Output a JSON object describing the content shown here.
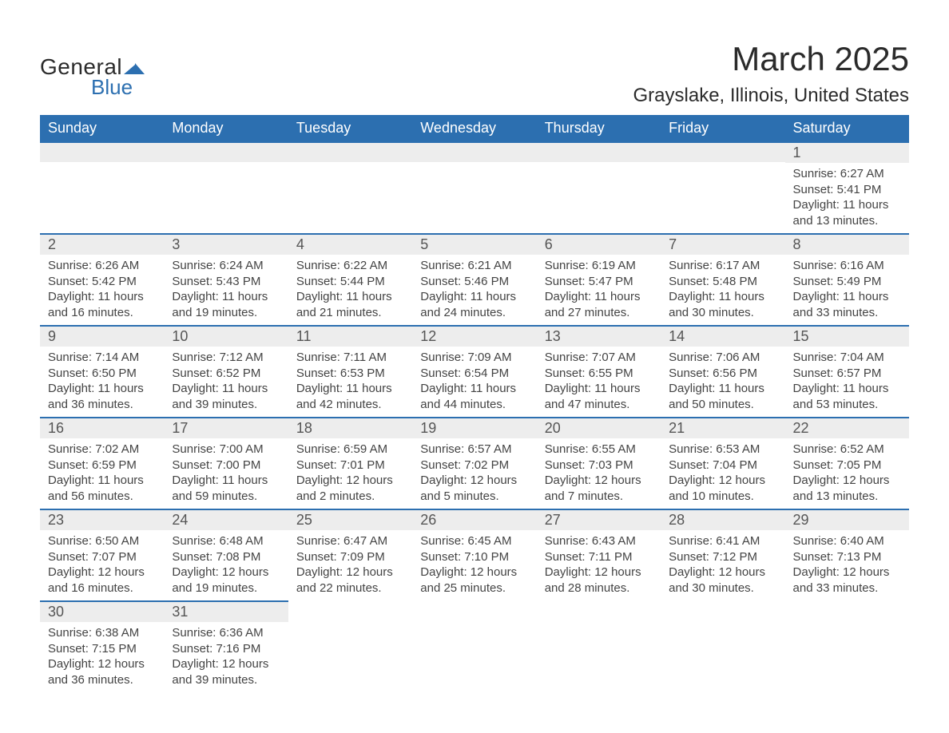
{
  "logo": {
    "text1": "General",
    "text2": "Blue"
  },
  "title": "March 2025",
  "location": "Grayslake, Illinois, United States",
  "colors": {
    "header_bg": "#2c6fb0",
    "header_text": "#ffffff",
    "daynum_bg": "#ededed",
    "daynum_text": "#555555",
    "body_text": "#444444",
    "rule": "#2c6fb0",
    "page_bg": "#ffffff",
    "title_text": "#2b2b2b",
    "logo_accent": "#2c6fb0"
  },
  "typography": {
    "title_fontsize": 42,
    "location_fontsize": 24,
    "header_fontsize": 18,
    "daynum_fontsize": 18,
    "body_fontsize": 15,
    "font_family": "Arial"
  },
  "layout": {
    "columns": 7,
    "rows": 6,
    "start_day_index": 6
  },
  "weekdays": [
    "Sunday",
    "Monday",
    "Tuesday",
    "Wednesday",
    "Thursday",
    "Friday",
    "Saturday"
  ],
  "labels": {
    "sunrise": "Sunrise:",
    "sunset": "Sunset:",
    "daylight": "Daylight:"
  },
  "days": [
    {
      "n": 1,
      "sunrise": "6:27 AM",
      "sunset": "5:41 PM",
      "daylight": "11 hours and 13 minutes."
    },
    {
      "n": 2,
      "sunrise": "6:26 AM",
      "sunset": "5:42 PM",
      "daylight": "11 hours and 16 minutes."
    },
    {
      "n": 3,
      "sunrise": "6:24 AM",
      "sunset": "5:43 PM",
      "daylight": "11 hours and 19 minutes."
    },
    {
      "n": 4,
      "sunrise": "6:22 AM",
      "sunset": "5:44 PM",
      "daylight": "11 hours and 21 minutes."
    },
    {
      "n": 5,
      "sunrise": "6:21 AM",
      "sunset": "5:46 PM",
      "daylight": "11 hours and 24 minutes."
    },
    {
      "n": 6,
      "sunrise": "6:19 AM",
      "sunset": "5:47 PM",
      "daylight": "11 hours and 27 minutes."
    },
    {
      "n": 7,
      "sunrise": "6:17 AM",
      "sunset": "5:48 PM",
      "daylight": "11 hours and 30 minutes."
    },
    {
      "n": 8,
      "sunrise": "6:16 AM",
      "sunset": "5:49 PM",
      "daylight": "11 hours and 33 minutes."
    },
    {
      "n": 9,
      "sunrise": "7:14 AM",
      "sunset": "6:50 PM",
      "daylight": "11 hours and 36 minutes."
    },
    {
      "n": 10,
      "sunrise": "7:12 AM",
      "sunset": "6:52 PM",
      "daylight": "11 hours and 39 minutes."
    },
    {
      "n": 11,
      "sunrise": "7:11 AM",
      "sunset": "6:53 PM",
      "daylight": "11 hours and 42 minutes."
    },
    {
      "n": 12,
      "sunrise": "7:09 AM",
      "sunset": "6:54 PM",
      "daylight": "11 hours and 44 minutes."
    },
    {
      "n": 13,
      "sunrise": "7:07 AM",
      "sunset": "6:55 PM",
      "daylight": "11 hours and 47 minutes."
    },
    {
      "n": 14,
      "sunrise": "7:06 AM",
      "sunset": "6:56 PM",
      "daylight": "11 hours and 50 minutes."
    },
    {
      "n": 15,
      "sunrise": "7:04 AM",
      "sunset": "6:57 PM",
      "daylight": "11 hours and 53 minutes."
    },
    {
      "n": 16,
      "sunrise": "7:02 AM",
      "sunset": "6:59 PM",
      "daylight": "11 hours and 56 minutes."
    },
    {
      "n": 17,
      "sunrise": "7:00 AM",
      "sunset": "7:00 PM",
      "daylight": "11 hours and 59 minutes."
    },
    {
      "n": 18,
      "sunrise": "6:59 AM",
      "sunset": "7:01 PM",
      "daylight": "12 hours and 2 minutes."
    },
    {
      "n": 19,
      "sunrise": "6:57 AM",
      "sunset": "7:02 PM",
      "daylight": "12 hours and 5 minutes."
    },
    {
      "n": 20,
      "sunrise": "6:55 AM",
      "sunset": "7:03 PM",
      "daylight": "12 hours and 7 minutes."
    },
    {
      "n": 21,
      "sunrise": "6:53 AM",
      "sunset": "7:04 PM",
      "daylight": "12 hours and 10 minutes."
    },
    {
      "n": 22,
      "sunrise": "6:52 AM",
      "sunset": "7:05 PM",
      "daylight": "12 hours and 13 minutes."
    },
    {
      "n": 23,
      "sunrise": "6:50 AM",
      "sunset": "7:07 PM",
      "daylight": "12 hours and 16 minutes."
    },
    {
      "n": 24,
      "sunrise": "6:48 AM",
      "sunset": "7:08 PM",
      "daylight": "12 hours and 19 minutes."
    },
    {
      "n": 25,
      "sunrise": "6:47 AM",
      "sunset": "7:09 PM",
      "daylight": "12 hours and 22 minutes."
    },
    {
      "n": 26,
      "sunrise": "6:45 AM",
      "sunset": "7:10 PM",
      "daylight": "12 hours and 25 minutes."
    },
    {
      "n": 27,
      "sunrise": "6:43 AM",
      "sunset": "7:11 PM",
      "daylight": "12 hours and 28 minutes."
    },
    {
      "n": 28,
      "sunrise": "6:41 AM",
      "sunset": "7:12 PM",
      "daylight": "12 hours and 30 minutes."
    },
    {
      "n": 29,
      "sunrise": "6:40 AM",
      "sunset": "7:13 PM",
      "daylight": "12 hours and 33 minutes."
    },
    {
      "n": 30,
      "sunrise": "6:38 AM",
      "sunset": "7:15 PM",
      "daylight": "12 hours and 36 minutes."
    },
    {
      "n": 31,
      "sunrise": "6:36 AM",
      "sunset": "7:16 PM",
      "daylight": "12 hours and 39 minutes."
    }
  ]
}
